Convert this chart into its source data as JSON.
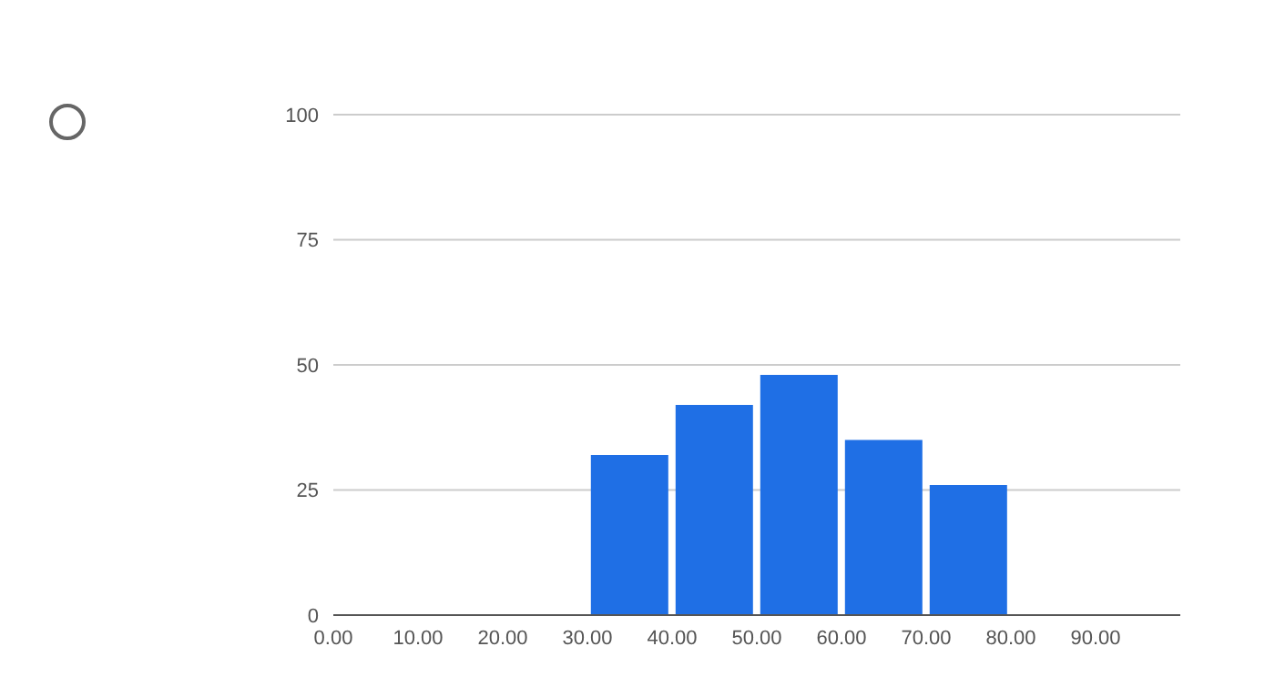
{
  "chart_data": {
    "type": "histogram",
    "bins": [
      0,
      10,
      20,
      30,
      40,
      50,
      60,
      70,
      80,
      90
    ],
    "values": [
      0,
      0,
      0,
      32,
      42,
      48,
      35,
      26,
      0
    ],
    "color": "#1f6fe5",
    "xlim": [
      0,
      100
    ],
    "xticks": [
      {
        "value": 0,
        "label": "0.00"
      },
      {
        "value": 10,
        "label": "10.00"
      },
      {
        "value": 20,
        "label": "20.00"
      },
      {
        "value": 30,
        "label": "30.00"
      },
      {
        "value": 40,
        "label": "40.00"
      },
      {
        "value": 50,
        "label": "50.00"
      },
      {
        "value": 60,
        "label": "60.00"
      },
      {
        "value": 70,
        "label": "70.00"
      },
      {
        "value": 80,
        "label": "80.00"
      },
      {
        "value": 90,
        "label": "90.00"
      }
    ],
    "ylim": [
      0,
      100
    ],
    "yticks": [
      0,
      25,
      50,
      75,
      100
    ],
    "grid": "y"
  }
}
